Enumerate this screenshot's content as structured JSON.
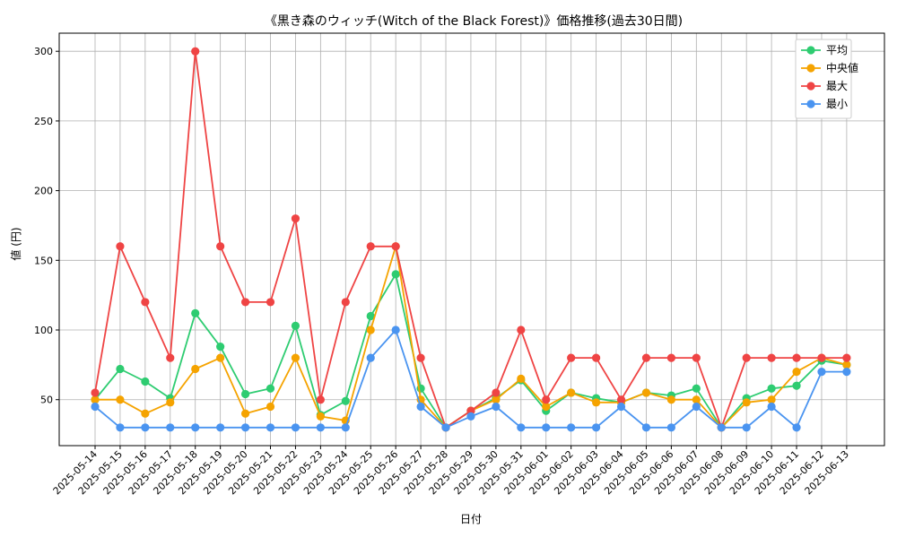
{
  "chart_data": {
    "type": "line",
    "title": "《黒き森のウィッチ(Witch of the Black Forest)》価格推移(過去30日間)",
    "xlabel": "日付",
    "ylabel": "値 (円)",
    "ylim": [
      17,
      313
    ],
    "yticks": [
      50,
      100,
      150,
      200,
      250,
      300
    ],
    "grid": true,
    "legend_position": "top-right",
    "categories": [
      "2025-05-14",
      "2025-05-15",
      "2025-05-16",
      "2025-05-17",
      "2025-05-18",
      "2025-05-19",
      "2025-05-20",
      "2025-05-21",
      "2025-05-22",
      "2025-05-23",
      "2025-05-24",
      "2025-05-25",
      "2025-05-26",
      "2025-05-27",
      "2025-05-28",
      "2025-05-29",
      "2025-05-30",
      "2025-05-31",
      "2025-06-01",
      "2025-06-02",
      "2025-06-03",
      "2025-06-04",
      "2025-06-05",
      "2025-06-06",
      "2025-06-07",
      "2025-06-08",
      "2025-06-09",
      "2025-06-10",
      "2025-06-11",
      "2025-06-12",
      "2025-06-13"
    ],
    "series": [
      {
        "name": "平均",
        "color": "#2ecc71",
        "values": [
          50,
          72,
          63,
          51,
          112,
          88,
          54,
          58,
          103,
          39,
          49,
          110,
          140,
          58,
          30,
          42,
          51,
          64,
          42,
          55,
          51,
          48,
          55,
          53,
          58,
          30,
          51,
          58,
          60,
          78,
          75
        ]
      },
      {
        "name": "中央値",
        "color": "#f5a300",
        "values": [
          50,
          50,
          40,
          48,
          72,
          80,
          40,
          45,
          80,
          38,
          35,
          100,
          160,
          50,
          30,
          42,
          50,
          65,
          45,
          55,
          48,
          48,
          55,
          50,
          50,
          30,
          48,
          50,
          70,
          80,
          75
        ]
      },
      {
        "name": "最大",
        "color": "#ef4444",
        "values": [
          55,
          160,
          120,
          80,
          300,
          160,
          120,
          120,
          180,
          50,
          120,
          160,
          160,
          80,
          30,
          42,
          55,
          100,
          50,
          80,
          80,
          50,
          80,
          80,
          80,
          30,
          80,
          80,
          80,
          80,
          80
        ]
      },
      {
        "name": "最小",
        "color": "#4a94f0",
        "values": [
          45,
          30,
          30,
          30,
          30,
          30,
          30,
          30,
          30,
          30,
          30,
          80,
          100,
          45,
          30,
          38,
          45,
          30,
          30,
          30,
          30,
          45,
          30,
          30,
          45,
          30,
          30,
          45,
          30,
          70,
          70
        ]
      }
    ]
  }
}
